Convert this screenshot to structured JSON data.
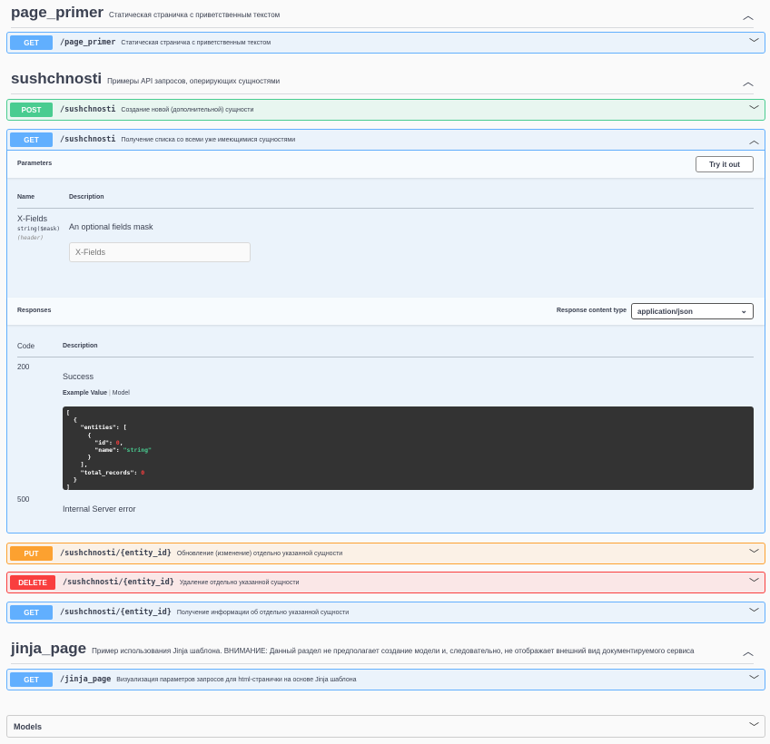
{
  "sections": [
    {
      "name": "page_primer",
      "description": "Статическая страничка с приветственным текстом"
    },
    {
      "name": "sushchnosti",
      "description": "Примеры API запросов, оперирующих сущностями"
    },
    {
      "name": "jinja_page",
      "description": "Пример использования Jinja шаблона. ВНИМАНИЕ: Данный раздел не предполагает создание модели и, следовательно, не отображает внешний вид документируемого сервиса"
    }
  ],
  "operations": [
    {
      "method": "GET",
      "path": "/page_primer",
      "summary": "Статическая страничка с приветственным текстом"
    },
    {
      "method": "POST",
      "path": "/sushchnosti",
      "summary": "Создание новой (дополнительной) сущности"
    },
    {
      "method": "GET",
      "path": "/sushchnosti",
      "summary": "Получение списка со всеми уже имеющимися сущностями"
    },
    {
      "method": "PUT",
      "path": "/sushchnosti/{entity_id}",
      "summary": "Обновление (изменение) отдельно указанной сущности"
    },
    {
      "method": "DELETE",
      "path": "/sushchnosti/{entity_id}",
      "summary": "Удаление отдельно указанной сущности"
    },
    {
      "method": "GET",
      "path": "/sushchnosti/{entity_id}",
      "summary": "Получение информации об отдельно указанной сущности"
    },
    {
      "method": "GET",
      "path": "/jinja_page",
      "summary": "Визуализация параметров запросов для html-странички на основе Jinja шаблона"
    }
  ],
  "expanded": {
    "parameters_label": "Parameters",
    "try_label": "Try it out",
    "col_name": "Name",
    "col_desc": "Description",
    "param": {
      "name": "X-Fields",
      "type": "string($mask)",
      "in": "(header)",
      "description": "An optional fields mask",
      "placeholder": "X-Fields"
    },
    "responses_label": "Responses",
    "content_type_label": "Response content type",
    "content_type": "application/json",
    "col_code": "Code",
    "col_rdesc": "Description",
    "responses": [
      {
        "code": "200",
        "description": "Success"
      },
      {
        "code": "500",
        "description": "Internal Server error"
      }
    ],
    "example_tab": "Example Value",
    "model_tab": "Model",
    "sep": "|"
  },
  "models_label": "Models",
  "colors": {
    "get": "#61affe",
    "post": "#49cc90",
    "put": "#fca130",
    "delete": "#f93e3e"
  }
}
